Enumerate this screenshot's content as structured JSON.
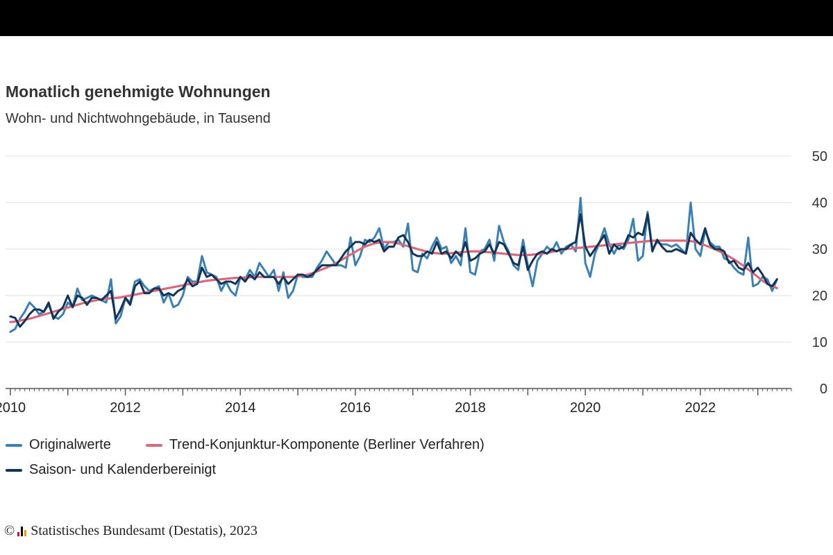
{
  "title": "Monatlich genehmigte Wohnungen",
  "subtitle": "Wohn- und Nichtwohngebäude, in Tausend",
  "source": {
    "copyright_symbol": "©",
    "text": "Statistisches Bundesamt (Destatis), 2023",
    "logo_icon": "destatis-logo-icon",
    "logo_colors": [
      "#c8102e",
      "#000000",
      "#e5a100"
    ]
  },
  "chart_data": {
    "type": "line",
    "title": "Monatlich genehmigte Wohnungen",
    "subtitle": "Wohn- und Nichtwohngebäude, in Tausend",
    "x_start": "2010-01",
    "x_end": "2023-05",
    "xlim": [
      "2009-12",
      "2023-08"
    ],
    "x_ticks": [
      "2010",
      "2012",
      "2014",
      "2016",
      "2018",
      "2020",
      "2022"
    ],
    "ylim": [
      0,
      50
    ],
    "y_ticks": [
      0,
      10,
      20,
      30,
      40,
      50
    ],
    "y_axis_side": "right",
    "grid": true,
    "legend_position": "bottom",
    "series": [
      {
        "name": "Originalwerte",
        "color": "#3a80b5",
        "values": [
          12.2,
          12.8,
          15.0,
          16.5,
          18.5,
          17.5,
          16.0,
          16.5,
          18.0,
          15.5,
          15.0,
          16.0,
          18.5,
          17.5,
          21.5,
          19.0,
          19.5,
          20.0,
          19.5,
          19.0,
          18.5,
          23.5,
          14.0,
          15.5,
          19.5,
          18.5,
          23.0,
          23.5,
          22.0,
          21.0,
          21.5,
          22.0,
          18.5,
          20.5,
          17.5,
          18.0,
          20.0,
          24.0,
          23.0,
          23.0,
          28.5,
          25.0,
          24.5,
          24.0,
          21.0,
          23.0,
          21.0,
          20.0,
          24.0,
          23.5,
          25.5,
          24.0,
          27.0,
          25.5,
          24.0,
          25.5,
          21.0,
          25.0,
          19.5,
          21.0,
          24.5,
          24.0,
          24.0,
          24.0,
          26.0,
          27.5,
          29.5,
          28.0,
          26.5,
          26.5,
          26.0,
          32.5,
          26.5,
          28.5,
          32.0,
          31.5,
          32.5,
          34.5,
          30.0,
          31.5,
          31.5,
          32.0,
          30.5,
          35.5,
          25.5,
          25.0,
          29.0,
          28.0,
          30.5,
          32.5,
          30.0,
          30.5,
          27.0,
          28.5,
          26.5,
          34.5,
          25.0,
          24.5,
          29.5,
          30.0,
          32.0,
          27.5,
          35.0,
          31.5,
          29.5,
          26.5,
          25.5,
          32.0,
          26.5,
          22.0,
          27.5,
          29.0,
          30.5,
          29.5,
          31.5,
          29.0,
          30.5,
          31.0,
          29.5,
          41.0,
          27.0,
          24.0,
          29.0,
          31.5,
          34.5,
          31.0,
          29.0,
          31.0,
          30.0,
          32.0,
          36.5,
          27.5,
          28.5,
          38.0,
          30.0,
          31.5,
          31.0,
          31.0,
          30.5,
          31.0,
          30.0,
          29.0,
          40.0,
          30.0,
          28.5,
          34.0,
          31.5,
          30.5,
          30.5,
          28.0,
          27.5,
          26.0,
          25.0,
          24.5,
          32.5,
          22.0,
          22.5,
          24.0,
          23.5,
          21.0,
          23.5
        ]
      },
      {
        "name": "Trend-Konjunktur-Komponente (Berliner Verfahren)",
        "color": "#d9687a",
        "values": [
          14.3,
          14.4,
          14.6,
          14.8,
          15.0,
          15.3,
          15.6,
          15.9,
          16.2,
          16.5,
          16.8,
          17.1,
          17.4,
          17.7,
          18.0,
          18.3,
          18.6,
          18.8,
          19.0,
          19.2,
          19.3,
          19.4,
          19.5,
          19.6,
          19.8,
          20.0,
          20.2,
          20.4,
          20.6,
          20.8,
          21.0,
          21.2,
          21.4,
          21.6,
          21.8,
          22.0,
          22.2,
          22.4,
          22.6,
          22.8,
          23.0,
          23.2,
          23.3,
          23.4,
          23.5,
          23.6,
          23.7,
          23.8,
          23.8,
          23.9,
          23.9,
          24.0,
          24.0,
          24.0,
          24.0,
          24.0,
          24.0,
          24.0,
          24.0,
          24.0,
          24.1,
          24.3,
          24.5,
          24.8,
          25.2,
          25.6,
          26.0,
          26.5,
          27.0,
          27.6,
          28.2,
          28.8,
          29.4,
          30.0,
          30.5,
          30.9,
          31.2,
          31.4,
          31.5,
          31.5,
          31.4,
          31.2,
          30.9,
          30.6,
          30.3,
          30.0,
          29.7,
          29.4,
          29.2,
          29.1,
          29.0,
          29.0,
          29.1,
          29.2,
          29.3,
          29.4,
          29.5,
          29.5,
          29.5,
          29.4,
          29.3,
          29.2,
          29.1,
          29.0,
          28.9,
          28.8,
          28.7,
          28.7,
          28.7,
          28.8,
          28.9,
          29.0,
          29.2,
          29.4,
          29.6,
          29.8,
          30.0,
          30.1,
          30.2,
          30.3,
          30.4,
          30.5,
          30.6,
          30.7,
          30.8,
          30.9,
          31.0,
          31.1,
          31.2,
          31.3,
          31.4,
          31.5,
          31.6,
          31.7,
          31.8,
          31.8,
          31.8,
          31.8,
          31.8,
          31.8,
          31.8,
          31.8,
          31.7,
          31.5,
          31.2,
          30.8,
          30.4,
          30.0,
          29.5,
          29.0,
          28.4,
          27.8,
          27.1,
          26.4,
          25.6,
          24.8,
          24.0,
          23.2,
          22.5,
          22.0,
          21.6
        ]
      },
      {
        "name": "Saison- und Kalenderbereinigt",
        "color": "#123456",
        "values": [
          15.5,
          15.2,
          13.3,
          14.5,
          16.0,
          17.0,
          17.0,
          16.5,
          18.5,
          15.0,
          16.5,
          17.5,
          20.0,
          17.5,
          20.0,
          19.5,
          18.0,
          19.5,
          19.5,
          19.0,
          20.0,
          21.0,
          15.0,
          17.0,
          19.5,
          18.0,
          22.0,
          23.0,
          20.5,
          20.5,
          21.5,
          21.5,
          20.0,
          20.5,
          20.0,
          21.0,
          21.5,
          23.5,
          22.0,
          22.5,
          26.0,
          24.0,
          24.5,
          23.5,
          22.5,
          23.0,
          23.0,
          22.5,
          24.0,
          23.0,
          24.5,
          23.5,
          25.0,
          24.0,
          24.0,
          24.0,
          22.5,
          24.0,
          22.5,
          23.5,
          24.5,
          24.5,
          24.0,
          24.5,
          25.5,
          26.5,
          26.5,
          26.5,
          26.5,
          28.0,
          29.5,
          30.5,
          31.5,
          31.5,
          31.0,
          32.0,
          31.5,
          32.0,
          29.5,
          30.5,
          30.5,
          32.5,
          33.0,
          31.5,
          29.0,
          28.5,
          28.5,
          29.5,
          29.0,
          31.5,
          29.0,
          29.5,
          28.0,
          29.5,
          28.5,
          31.5,
          27.5,
          28.0,
          29.0,
          29.5,
          31.0,
          29.0,
          31.5,
          31.0,
          29.0,
          27.0,
          26.5,
          30.5,
          25.5,
          27.5,
          29.0,
          29.5,
          29.0,
          30.0,
          29.5,
          30.0,
          30.0,
          31.0,
          31.5,
          37.5,
          30.5,
          28.5,
          30.0,
          31.5,
          33.0,
          29.0,
          31.0,
          30.0,
          30.5,
          33.0,
          32.5,
          33.5,
          33.0,
          37.5,
          29.5,
          32.0,
          30.5,
          29.5,
          29.5,
          30.0,
          29.5,
          29.0,
          33.5,
          32.0,
          31.0,
          34.5,
          31.0,
          30.0,
          30.0,
          29.5,
          27.0,
          27.5,
          26.0,
          25.5,
          27.0,
          25.0,
          26.0,
          24.5,
          22.5,
          22.0,
          23.5
        ]
      }
    ]
  }
}
